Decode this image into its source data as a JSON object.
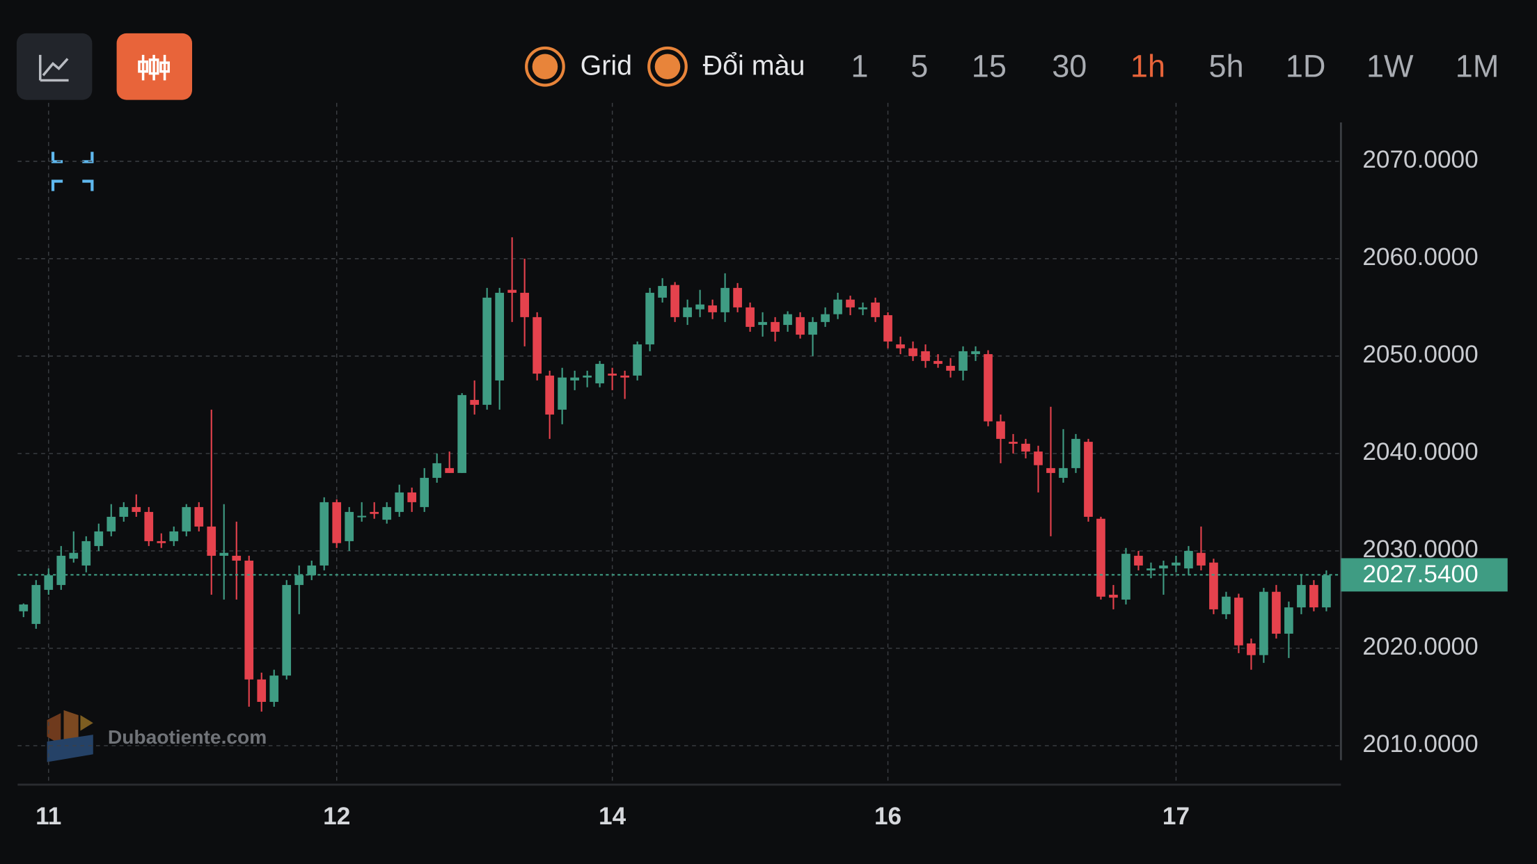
{
  "toolbar": {
    "toggles": [
      "Grid",
      "Đổi màu"
    ],
    "intervals": [
      "1",
      "5",
      "15",
      "30",
      "1h",
      "5h",
      "1D",
      "1W",
      "1M"
    ],
    "active_interval": 4
  },
  "watermark": "Dubaotiente.com",
  "chart_data": {
    "type": "candlestick",
    "categories": [
      null,
      null,
      "11",
      null,
      null,
      null,
      null,
      null,
      null,
      null,
      null,
      null,
      null,
      null,
      null,
      null,
      null,
      null,
      null,
      null,
      null,
      null,
      null,
      null,
      null,
      "12",
      null,
      null,
      null,
      null,
      null,
      null,
      null,
      null,
      null,
      null,
      null,
      null,
      null,
      null,
      null,
      null,
      null,
      null,
      null,
      null,
      null,
      "14",
      null,
      null,
      null,
      null,
      null,
      null,
      null,
      null,
      null,
      null,
      null,
      null,
      null,
      null,
      null,
      null,
      null,
      null,
      null,
      null,
      null,
      "16",
      null,
      null,
      null,
      null,
      null,
      null,
      null,
      null,
      null,
      null,
      null,
      null,
      null,
      null,
      null,
      null,
      null,
      null,
      null,
      null,
      null,
      null,
      "17",
      null,
      null,
      null,
      null,
      null,
      null,
      null,
      null,
      null,
      null,
      null,
      null
    ],
    "ohlc": [
      [
        2023.8,
        2024.6,
        2023.2,
        2024.5
      ],
      [
        2022.5,
        2027,
        2022,
        2026.5
      ],
      [
        2026,
        2028.2,
        2025.5,
        2027.5
      ],
      [
        2026.5,
        2030.5,
        2026,
        2029.5
      ],
      [
        2029.2,
        2032,
        2028.8,
        2029.8
      ],
      [
        2028.5,
        2031.5,
        2027.8,
        2031
      ],
      [
        2030.5,
        2032.8,
        2030,
        2032
      ],
      [
        2032,
        2034.8,
        2031.5,
        2033.5
      ],
      [
        2033.5,
        2035,
        2033,
        2034.5
      ],
      [
        2034.5,
        2035.8,
        2033.5,
        2034
      ],
      [
        2034,
        2034.5,
        2030.5,
        2031
      ],
      [
        2031,
        2031.8,
        2030.3,
        2030.8
      ],
      [
        2031,
        2032.5,
        2030.5,
        2032
      ],
      [
        2032,
        2034.8,
        2031.5,
        2034.5
      ],
      [
        2034.5,
        2035,
        2032,
        2032.5
      ],
      [
        2032.5,
        2044.5,
        2025.5,
        2029.5
      ],
      [
        2029.5,
        2034.8,
        2025,
        2029.8
      ],
      [
        2029.5,
        2033,
        2025,
        2029
      ],
      [
        2029,
        2029.5,
        2014,
        2016.8
      ],
      [
        2016.8,
        2017.5,
        2013.5,
        2014.5
      ],
      [
        2014.5,
        2017.8,
        2014,
        2017.2
      ],
      [
        2017.2,
        2027,
        2016.8,
        2026.5
      ],
      [
        2026.5,
        2028.5,
        2023.5,
        2027.5
      ],
      [
        2027.5,
        2029,
        2027,
        2028.5
      ],
      [
        2028.5,
        2035.5,
        2028,
        2035
      ],
      [
        2035,
        2035.3,
        2030.3,
        2030.8
      ],
      [
        2031,
        2034.5,
        2030,
        2034
      ],
      [
        2033.5,
        2035,
        2033,
        2033.6
      ],
      [
        2034,
        2035,
        2033.3,
        2033.8
      ],
      [
        2033.2,
        2035,
        2032.8,
        2034.5
      ],
      [
        2034,
        2036.8,
        2033.5,
        2036
      ],
      [
        2036,
        2036.5,
        2034,
        2035
      ],
      [
        2034.5,
        2038.5,
        2034,
        2037.5
      ],
      [
        2037.5,
        2040,
        2037,
        2039
      ],
      [
        2038.5,
        2040.2,
        2038,
        2038
      ],
      [
        2038,
        2046.2,
        2038,
        2046
      ],
      [
        2045.5,
        2047.5,
        2044,
        2045
      ],
      [
        2045,
        2057,
        2044.5,
        2056
      ],
      [
        2047.5,
        2057,
        2044.5,
        2056.5
      ],
      [
        2056.8,
        2062.2,
        2053.5,
        2056.5
      ],
      [
        2056.5,
        2060,
        2051,
        2054
      ],
      [
        2054,
        2054.5,
        2047.5,
        2048.2
      ],
      [
        2048,
        2048.5,
        2041.5,
        2044
      ],
      [
        2044.5,
        2048.8,
        2043,
        2047.8
      ],
      [
        2047.5,
        2048.5,
        2046.5,
        2047.8
      ],
      [
        2047.8,
        2048.5,
        2046.8,
        2048
      ],
      [
        2047.2,
        2049.5,
        2046.8,
        2049.2
      ],
      [
        2048.2,
        2048.8,
        2046.5,
        2048
      ],
      [
        2048,
        2048.5,
        2045.6,
        2047.8
      ],
      [
        2048,
        2051.5,
        2047.5,
        2051.2
      ],
      [
        2051.2,
        2057,
        2050.5,
        2056.5
      ],
      [
        2056,
        2058,
        2055.5,
        2057.2
      ],
      [
        2057.3,
        2057.6,
        2053.5,
        2054
      ],
      [
        2054,
        2055.8,
        2053.2,
        2055
      ],
      [
        2054.8,
        2056.8,
        2054,
        2055.3
      ],
      [
        2055.2,
        2055.8,
        2053.8,
        2054.5
      ],
      [
        2054.5,
        2058.5,
        2053.5,
        2057
      ],
      [
        2057,
        2057.5,
        2054.5,
        2055
      ],
      [
        2055,
        2055.5,
        2052.5,
        2053
      ],
      [
        2053.2,
        2054.5,
        2052,
        2053.5
      ],
      [
        2053.5,
        2054,
        2051.5,
        2052.5
      ],
      [
        2053.2,
        2054.6,
        2052.5,
        2054.3
      ],
      [
        2054,
        2054.5,
        2051.8,
        2052.2
      ],
      [
        2052.2,
        2054,
        2050,
        2053.5
      ],
      [
        2053.5,
        2055,
        2053,
        2054.3
      ],
      [
        2054.3,
        2056.5,
        2053.8,
        2055.8
      ],
      [
        2055.8,
        2056.2,
        2054.2,
        2055
      ],
      [
        2054.8,
        2055.5,
        2054.2,
        2055
      ],
      [
        2055.5,
        2056,
        2053.5,
        2054
      ],
      [
        2054.2,
        2054.5,
        2050.8,
        2051.5
      ],
      [
        2051.2,
        2052,
        2050.2,
        2050.8
      ],
      [
        2050.8,
        2051.5,
        2049.5,
        2050
      ],
      [
        2050.5,
        2051.2,
        2048.8,
        2049.5
      ],
      [
        2049.5,
        2050.2,
        2048.8,
        2049.2
      ],
      [
        2049,
        2049.8,
        2047.8,
        2048.5
      ],
      [
        2048.5,
        2051,
        2047.5,
        2050.5
      ],
      [
        2050.2,
        2051,
        2049.5,
        2050.5
      ],
      [
        2050.2,
        2050.6,
        2042.8,
        2043.3
      ],
      [
        2043.3,
        2044,
        2039,
        2041.5
      ],
      [
        2041.2,
        2042,
        2040,
        2041
      ],
      [
        2041,
        2041.5,
        2039.5,
        2040.2
      ],
      [
        2040.2,
        2040.8,
        2036,
        2038.8
      ],
      [
        2038.5,
        2044.8,
        2031.5,
        2038
      ],
      [
        2037.5,
        2042.5,
        2037,
        2038.5
      ],
      [
        2038.5,
        2042,
        2038,
        2041.5
      ],
      [
        2041.2,
        2041.5,
        2033,
        2033.5
      ],
      [
        2033.3,
        2033.5,
        2025,
        2025.3
      ],
      [
        2025.5,
        2026.5,
        2024,
        2025.2
      ],
      [
        2025,
        2030.3,
        2024.5,
        2029.7
      ],
      [
        2029.5,
        2030,
        2028,
        2028.5
      ],
      [
        2028,
        2028.8,
        2027.2,
        2028.2
      ],
      [
        2028.2,
        2029,
        2025.5,
        2028.5
      ],
      [
        2028.5,
        2029.5,
        2027.8,
        2028.8
      ],
      [
        2028.2,
        2030.5,
        2027.5,
        2030
      ],
      [
        2029.8,
        2032.5,
        2028,
        2028.5
      ],
      [
        2028.8,
        2029.2,
        2023.5,
        2024
      ],
      [
        2023.5,
        2025.8,
        2023,
        2025.3
      ],
      [
        2025.2,
        2025.6,
        2019.5,
        2020.3
      ],
      [
        2020.5,
        2021,
        2017.8,
        2019.3
      ],
      [
        2019.3,
        2026.2,
        2018.5,
        2025.8
      ],
      [
        2025.8,
        2026.5,
        2021,
        2021.5
      ],
      [
        2021.5,
        2024.8,
        2019,
        2024.2
      ],
      [
        2024.2,
        2027.5,
        2023.5,
        2026.5
      ],
      [
        2026.5,
        2027,
        2023.8,
        2024.2
      ],
      [
        2024.2,
        2028,
        2023.8,
        2027.5
      ]
    ],
    "up_color": "#3f9c83",
    "down_color": "#e5424d",
    "last_price": {
      "value": 2027.54,
      "label": "2027.5400"
    },
    "ylim": [
      2006,
      2076
    ],
    "yticks": [
      {
        "value": 2010,
        "label": "2010.0000"
      },
      {
        "value": 2020,
        "label": "2020.0000"
      },
      {
        "value": 2030,
        "label": "2030.0000"
      },
      {
        "value": 2040,
        "label": "2040.0000"
      },
      {
        "value": 2050,
        "label": "2050.0000"
      },
      {
        "value": 2060,
        "label": "2060.0000"
      },
      {
        "value": 2070,
        "label": "2070.0000"
      }
    ],
    "grid": true
  }
}
